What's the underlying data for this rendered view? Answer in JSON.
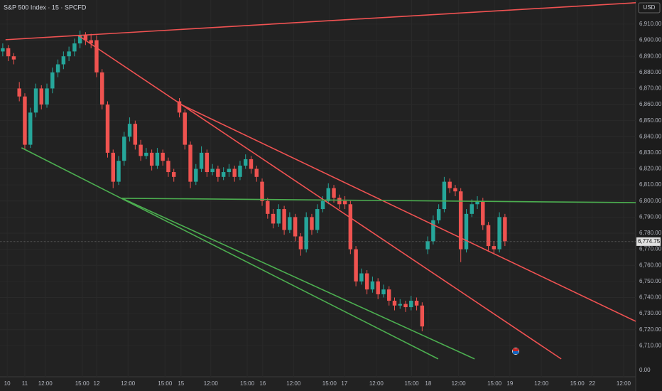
{
  "chart_data": {
    "type": "candlestick",
    "title": "S&P 500 Index · 15 · SPCFD",
    "currency": "USD",
    "scale_bottom_label": "0.00",
    "up_color": "#26a69a",
    "down_color": "#ef5350",
    "grid": true,
    "x": [
      0,
      1,
      2,
      3,
      4,
      5,
      6,
      7,
      8,
      9,
      10,
      11,
      12,
      13,
      14,
      15,
      16,
      17,
      18,
      19,
      20,
      21,
      22,
      23,
      24,
      25,
      26,
      27,
      28,
      29,
      30,
      31,
      32,
      33,
      34,
      35,
      36,
      37,
      38,
      39,
      40,
      41,
      42,
      43,
      44,
      45,
      46,
      47,
      48,
      49,
      50,
      51,
      52,
      53,
      54,
      55,
      56,
      57,
      58,
      59,
      60,
      61,
      62,
      63,
      64,
      65,
      66,
      67,
      68,
      69,
      70,
      71,
      72,
      73,
      74,
      75,
      76,
      77,
      78,
      79,
      80,
      81,
      82,
      83,
      84,
      85,
      86,
      87,
      88,
      89,
      90,
      91
    ],
    "open": [
      6893,
      6895,
      6890,
      6870,
      6865,
      6835,
      6855,
      6870,
      6860,
      6870,
      6880,
      6885,
      6890,
      6893,
      6898,
      6903,
      6900,
      6900,
      6880,
      6860,
      6830,
      6812,
      6825,
      6840,
      6848,
      6835,
      6828,
      6830,
      6822,
      6830,
      6825,
      6818,
      6862,
      6855,
      6835,
      6812,
      6820,
      6830,
      6818,
      6820,
      6815,
      6818,
      6820,
      6815,
      6822,
      6826,
      6820,
      6812,
      6800,
      6792,
      6786,
      6795,
      6782,
      6790,
      6778,
      6770,
      6790,
      6782,
      6795,
      6800,
      6808,
      6802,
      6800,
      6798,
      6770,
      6750,
      6755,
      6745,
      6750,
      6742,
      6745,
      6738,
      6735,
      6736,
      6734,
      6738,
      6735,
      6770,
      6775,
      6788,
      6795,
      6812,
      6808,
      6806,
      6770,
      6792,
      6798,
      6800,
      6785,
      6772,
      6770,
      6790
    ],
    "high": [
      6898,
      6897,
      6892,
      6874,
      6867,
      6858,
      6873,
      6872,
      6873,
      6883,
      6888,
      6893,
      6896,
      6901,
      6906,
      6905,
      6904,
      6903,
      6882,
      6862,
      6832,
      6828,
      6843,
      6852,
      6850,
      6838,
      6833,
      6832,
      6833,
      6832,
      6827,
      6820,
      6864,
      6857,
      6837,
      6823,
      6834,
      6832,
      6823,
      6822,
      6821,
      6823,
      6822,
      6825,
      6829,
      6828,
      6822,
      6814,
      6802,
      6795,
      6798,
      6797,
      6793,
      6792,
      6780,
      6793,
      6792,
      6798,
      6803,
      6811,
      6810,
      6804,
      6803,
      6800,
      6772,
      6758,
      6757,
      6753,
      6752,
      6748,
      6747,
      6740,
      6739,
      6738,
      6741,
      6740,
      6737,
      6778,
      6791,
      6798,
      6815,
      6814,
      6810,
      6808,
      6795,
      6801,
      6803,
      6802,
      6787,
      6775,
      6793,
      6792
    ],
    "low": [
      6890,
      6887,
      6885,
      6862,
      6832,
      6833,
      6852,
      6857,
      6858,
      6867,
      6877,
      6882,
      6887,
      6890,
      6895,
      6897,
      6895,
      6877,
      6857,
      6827,
      6808,
      6810,
      6822,
      6837,
      6832,
      6825,
      6826,
      6819,
      6820,
      6822,
      6815,
      6812,
      6852,
      6832,
      6808,
      6810,
      6818,
      6815,
      6816,
      6812,
      6813,
      6815,
      6812,
      6813,
      6820,
      6817,
      6812,
      6797,
      6789,
      6783,
      6784,
      6779,
      6780,
      6775,
      6766,
      6768,
      6779,
      6780,
      6793,
      6798,
      6799,
      6795,
      6795,
      6767,
      6747,
      6748,
      6742,
      6743,
      6739,
      6740,
      6735,
      6732,
      6733,
      6731,
      6732,
      6732,
      6719,
      6767,
      6773,
      6786,
      6793,
      6805,
      6803,
      6762,
      6768,
      6790,
      6795,
      6782,
      6769,
      6767,
      6768,
      6772
    ],
    "close": [
      6895,
      6890,
      6888,
      6865,
      6835,
      6855,
      6870,
      6860,
      6870,
      6880,
      6885,
      6890,
      6893,
      6898,
      6903,
      6900,
      6898,
      6880,
      6860,
      6830,
      6812,
      6825,
      6840,
      6848,
      6835,
      6828,
      6830,
      6822,
      6830,
      6825,
      6818,
      6815,
      6855,
      6835,
      6812,
      6820,
      6830,
      6818,
      6820,
      6815,
      6818,
      6820,
      6815,
      6822,
      6826,
      6820,
      6815,
      6800,
      6792,
      6786,
      6795,
      6782,
      6790,
      6778,
      6770,
      6790,
      6782,
      6795,
      6800,
      6808,
      6802,
      6798,
      6798,
      6770,
      6750,
      6755,
      6745,
      6750,
      6742,
      6745,
      6738,
      6735,
      6736,
      6734,
      6738,
      6735,
      6722,
      6775,
      6788,
      6795,
      6812,
      6808,
      6806,
      6770,
      6792,
      6798,
      6800,
      6785,
      6772,
      6770,
      6790,
      6775
    ],
    "last_price": {
      "value": 6774.75,
      "label": "6,774.75"
    },
    "trendlines": [
      {
        "color": "#f05252",
        "x": [
          0.5,
          114.7
        ],
        "y": [
          6900.3,
          6923.3
        ]
      },
      {
        "color": "#f05252",
        "x": [
          13.7,
          101.2
        ],
        "y": [
          6902.9,
          6701.8
        ]
      },
      {
        "color": "#f05252",
        "x": [
          32.3,
          114.7
        ],
        "y": [
          6860,
          6725.2
        ]
      },
      {
        "color": "#4caf50",
        "x": [
          21.6,
          114.7
        ],
        "y": [
          6801.7,
          6799.0
        ]
      },
      {
        "color": "#4caf50",
        "x": [
          3.4,
          78.9
        ],
        "y": [
          6833.1,
          6701.8
        ]
      },
      {
        "color": "#4caf50",
        "x": [
          21.6,
          85.5
        ],
        "y": [
          6801.7,
          6701.8
        ]
      }
    ],
    "xlim": [
      -0.5,
      114.7
    ],
    "ylim": [
      6690.7,
      6925
    ],
    "xticks": [
      {
        "value": 0.8,
        "label": "10"
      },
      {
        "value": 4.0,
        "label": "11"
      },
      {
        "value": 7.7,
        "label": "12:00"
      },
      {
        "value": 14.4,
        "label": "15:00"
      },
      {
        "value": 17.0,
        "label": "12"
      },
      {
        "value": 22.7,
        "label": "12:00"
      },
      {
        "value": 29.4,
        "label": "15:00"
      },
      {
        "value": 32.3,
        "label": "15"
      },
      {
        "value": 37.7,
        "label": "12:00"
      },
      {
        "value": 44.3,
        "label": "15:00"
      },
      {
        "value": 47.1,
        "label": "16"
      },
      {
        "value": 52.7,
        "label": "12:00"
      },
      {
        "value": 59.2,
        "label": "15:00"
      },
      {
        "value": 61.9,
        "label": "17"
      },
      {
        "value": 67.7,
        "label": "12:00"
      },
      {
        "value": 74.1,
        "label": "15:00"
      },
      {
        "value": 77.1,
        "label": "18"
      },
      {
        "value": 82.6,
        "label": "12:00"
      },
      {
        "value": 89.1,
        "label": "15:00"
      },
      {
        "value": 91.9,
        "label": "19"
      },
      {
        "value": 97.6,
        "label": "12:00"
      },
      {
        "value": 104.1,
        "label": "15:00"
      },
      {
        "value": 106.8,
        "label": "22"
      },
      {
        "value": 112.5,
        "label": "12:00"
      }
    ],
    "yticks": [
      {
        "value": 6710,
        "label": "6,710.00"
      },
      {
        "value": 6720,
        "label": "6,720.00"
      },
      {
        "value": 6730,
        "label": "6,730.00"
      },
      {
        "value": 6740,
        "label": "6,740.00"
      },
      {
        "value": 6750,
        "label": "6,750.00"
      },
      {
        "value": 6760,
        "label": "6,760.00"
      },
      {
        "value": 6770,
        "label": "6,770.00"
      },
      {
        "value": 6780,
        "label": "6,780.00"
      },
      {
        "value": 6790,
        "label": "6,790.00"
      },
      {
        "value": 6800,
        "label": "6,800.00"
      },
      {
        "value": 6810,
        "label": "6,810.00"
      },
      {
        "value": 6820,
        "label": "6,820.00"
      },
      {
        "value": 6830,
        "label": "6,830.00"
      },
      {
        "value": 6840,
        "label": "6,840.00"
      },
      {
        "value": 6850,
        "label": "6,850.00"
      },
      {
        "value": 6860,
        "label": "6,860.00"
      },
      {
        "value": 6870,
        "label": "6,870.00"
      },
      {
        "value": 6880,
        "label": "6,880.00"
      },
      {
        "value": 6890,
        "label": "6,890.00"
      },
      {
        "value": 6900,
        "label": "6,900.00"
      },
      {
        "value": 6910,
        "label": "6,910.00"
      }
    ]
  }
}
